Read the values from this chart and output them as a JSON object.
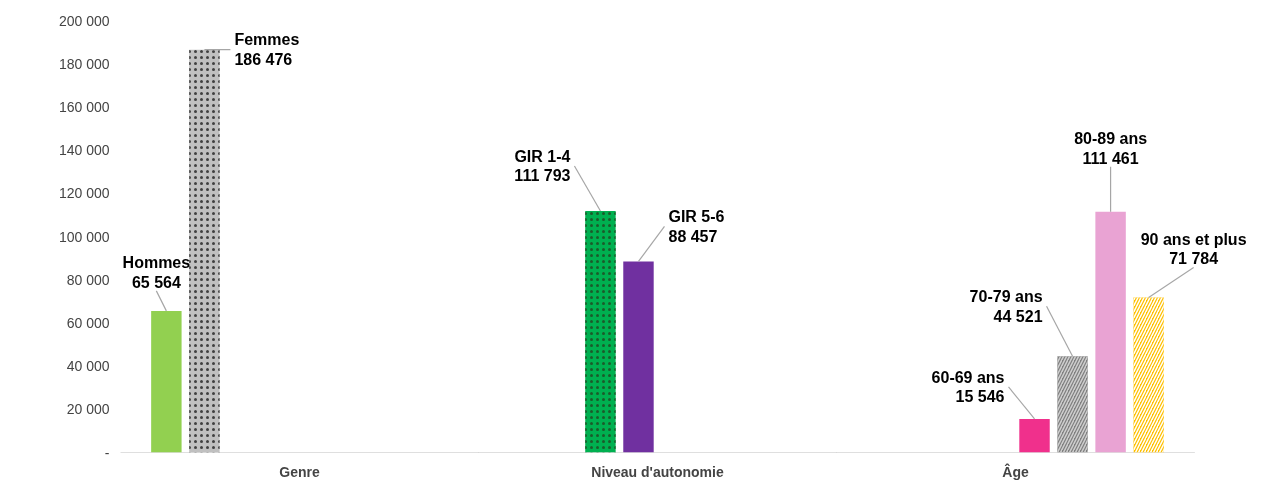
{
  "chart_data": {
    "type": "bar",
    "categories": [
      "Genre",
      "Niveau d'autonomie",
      "Âge"
    ],
    "series": [
      {
        "name": "Hommes",
        "color": "#92d050",
        "values": [
          65564,
          null,
          null
        ],
        "value_labels": [
          "65 564",
          null,
          null
        ]
      },
      {
        "name": "Femmes",
        "color": "#c0c0c0",
        "values": [
          186476,
          null,
          null
        ],
        "value_labels": [
          "186 476",
          null,
          null
        ]
      },
      {
        "name": "GIR 1-4",
        "color": "#00b050",
        "values": [
          null,
          111793,
          null
        ],
        "value_labels": [
          null,
          "111 793",
          null
        ]
      },
      {
        "name": "GIR 5-6",
        "color": "#7030a0",
        "values": [
          null,
          88457,
          null
        ],
        "value_labels": [
          null,
          "88 457",
          null
        ]
      },
      {
        "name": "60-69 ans",
        "color": "#f0308c",
        "values": [
          null,
          null,
          15546
        ],
        "value_labels": [
          null,
          null,
          "15 546"
        ]
      },
      {
        "name": "70-79 ans",
        "color": "#808080",
        "values": [
          null,
          null,
          44521
        ],
        "value_labels": [
          null,
          null,
          "44 521"
        ]
      },
      {
        "name": "80-89 ans",
        "color": "#e9a3d3",
        "values": [
          null,
          null,
          111461
        ],
        "value_labels": [
          null,
          null,
          "111 461"
        ]
      },
      {
        "name": "90 ans et plus",
        "color": "#ffc000",
        "values": [
          null,
          null,
          71784
        ],
        "value_labels": [
          null,
          null,
          "71 784"
        ]
      }
    ],
    "ylim": [
      0,
      200000
    ],
    "yticks": [
      {
        "value": 0,
        "label": "-"
      },
      {
        "value": 20000,
        "label": "20 000"
      },
      {
        "value": 40000,
        "label": "40 000"
      },
      {
        "value": 60000,
        "label": "60 000"
      },
      {
        "value": 80000,
        "label": "80 000"
      },
      {
        "value": 100000,
        "label": "100 000"
      },
      {
        "value": 120000,
        "label": "120 000"
      },
      {
        "value": 140000,
        "label": "140 000"
      },
      {
        "value": 160000,
        "label": "160 000"
      },
      {
        "value": 180000,
        "label": "180 000"
      },
      {
        "value": 200000,
        "label": "200 000"
      }
    ],
    "grid": false,
    "legend": false
  }
}
